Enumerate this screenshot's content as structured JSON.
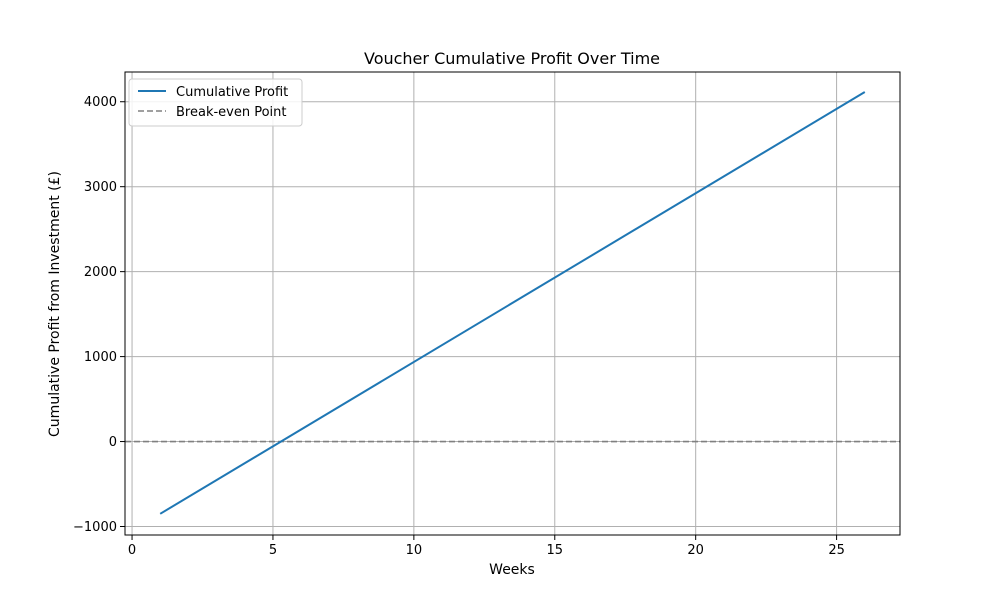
{
  "chart_data": {
    "type": "line",
    "title": "Voucher Cumulative Profit Over Time",
    "xlabel": "Weeks",
    "ylabel": "Cumulative Profit from Investment (£)",
    "xlim": [
      -0.25,
      27.25
    ],
    "ylim": [
      -1100,
      4350
    ],
    "x_ticks": [
      0,
      5,
      10,
      15,
      20,
      25
    ],
    "y_ticks": [
      -1000,
      0,
      1000,
      2000,
      3000,
      4000
    ],
    "y_tick_labels": [
      "−1000",
      "0",
      "1000",
      "2000",
      "3000",
      "4000"
    ],
    "grid": true,
    "legend_position": "top-left",
    "series": [
      {
        "name": "Cumulative Profit",
        "color": "#1f77b4",
        "style": "solid",
        "x": [
          1,
          26
        ],
        "y": [
          -850,
          4115
        ]
      },
      {
        "name": "Break-even Point",
        "color": "#808080",
        "style": "dashed",
        "y_constant": 0
      }
    ]
  }
}
